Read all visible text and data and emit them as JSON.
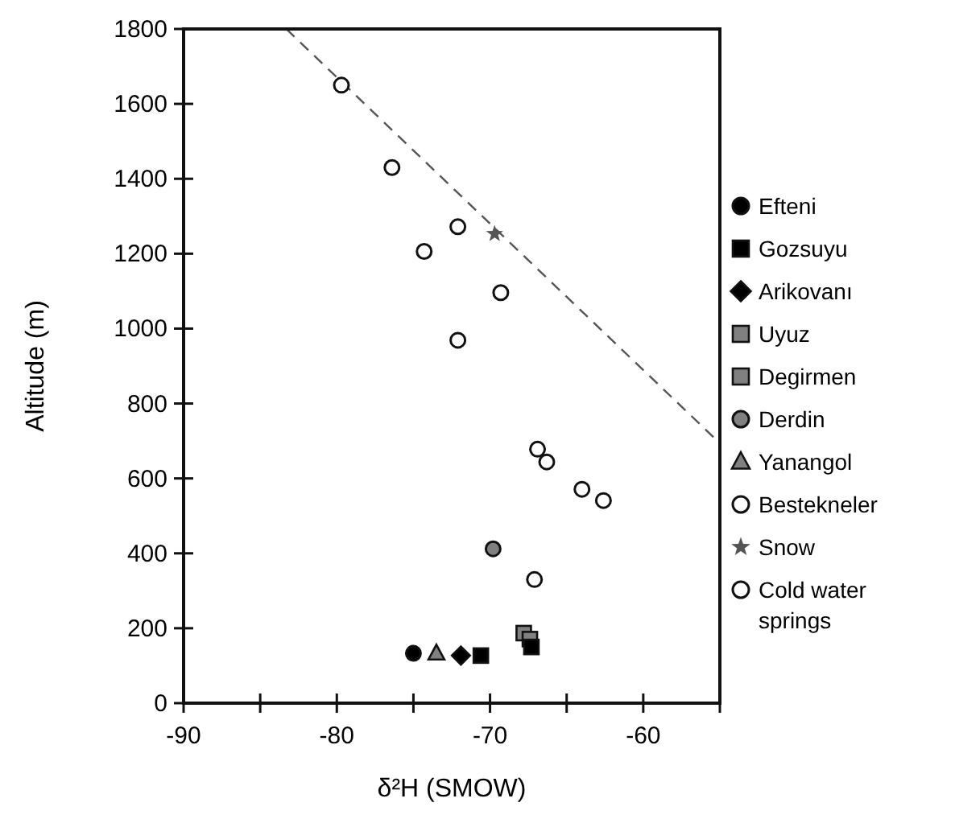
{
  "chart_data": {
    "type": "scatter",
    "xlabel": "δ²H (SMOW)",
    "ylabel": "Altitude (m)",
    "xlim": [
      -90,
      -55
    ],
    "ylim": [
      0,
      1800
    ],
    "xticks": [
      -90,
      {
        "value": -85,
        "label": null
      },
      -80,
      {
        "value": -75,
        "label": null
      },
      -70,
      {
        "value": -65,
        "label": null
      },
      -60,
      {
        "value": -55,
        "label": null
      }
    ],
    "yticks": [
      0,
      200,
      400,
      600,
      800,
      1000,
      1200,
      1400,
      1600,
      1800
    ],
    "grid": false,
    "legend": "right",
    "series": [
      {
        "name": "Efteni",
        "color": "#000000",
        "marker": "circle",
        "x": [
          -75.0
        ],
        "values": [
          133
        ]
      },
      {
        "name": "Gozsuyu",
        "color": "#000000",
        "marker": "square",
        "x": [
          -70.6,
          -67.3
        ],
        "values": [
          127,
          150
        ]
      },
      {
        "name": "Arikovanı",
        "color": "#000000",
        "marker": "diamond",
        "x": [
          -71.9
        ],
        "values": [
          127
        ]
      },
      {
        "name": "Uyuz",
        "color": "#808080",
        "marker": "square",
        "x": [
          -67.4
        ],
        "values": [
          171
        ]
      },
      {
        "name": "Degirmen",
        "color": "#808080",
        "marker": "square",
        "x": [
          -67.8
        ],
        "values": [
          187
        ]
      },
      {
        "name": "Derdin",
        "color": "#808080",
        "marker": "circle",
        "x": [
          -69.8
        ],
        "values": [
          412
        ]
      },
      {
        "name": "Yanangol",
        "color": "#808080",
        "marker": "triangle",
        "x": [
          -73.5
        ],
        "values": [
          133
        ]
      },
      {
        "name": "Bestekneler",
        "color": "#ffffff",
        "marker": "circle",
        "x": [
          -79.7
        ],
        "values": [
          1650
        ]
      },
      {
        "name": "Snow",
        "color": "#555555",
        "marker": "star",
        "x": [
          -69.7
        ],
        "values": [
          1253
        ]
      },
      {
        "name": "Cold water springs",
        "color": "#ffffff",
        "marker": "circle",
        "x": [
          -76.4,
          -72.1,
          -74.3,
          -69.3,
          -72.1,
          -66.9,
          -66.3,
          -64.0,
          -62.6,
          -67.1
        ],
        "values": [
          1430,
          1272,
          1206,
          1096,
          969,
          678,
          644,
          571,
          541,
          330
        ]
      },
      {
        "type": "line",
        "color": "#555555",
        "line_style": "dashed",
        "marker": "none",
        "x": [
          -83.3,
          -55
        ],
        "values": [
          1800,
          694
        ]
      }
    ]
  }
}
